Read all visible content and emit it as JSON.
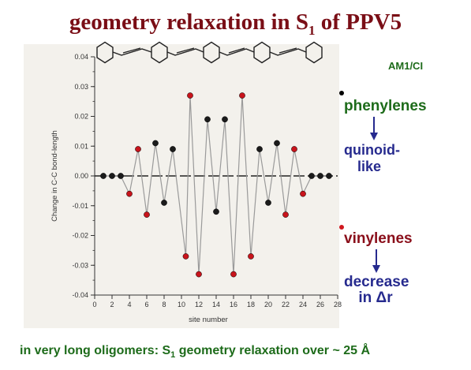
{
  "slide": {
    "title_main": "geometry relaxation in S",
    "title_sub": "1",
    "title_end": " of PPV5",
    "method": "AM1/CI",
    "phenylenes": "phenylenes",
    "quinoid_1": "quinoid-",
    "quinoid_2": "like",
    "vinylenes": "vinylenes",
    "decrease_1": "decrease",
    "decrease_2": "in Δr",
    "footer_a": "in very long oligomers: S",
    "footer_sub": "1",
    "footer_b": " geometry relaxation over ~ 25 Å"
  },
  "colors": {
    "phenylene_point": "#1b1b1b",
    "vinylene_point": "#c8141c",
    "curve": "#9a9a9a",
    "title": "#7a0e16",
    "green_text": "#1d6b1a",
    "blue_text": "#262a8e"
  },
  "chart_data": {
    "type": "line",
    "xlabel": "site number",
    "ylabel": "Change in C-C bond-length",
    "xlim": [
      0,
      28
    ],
    "ylim": [
      -0.04,
      0.04
    ],
    "x_ticks": [
      "0",
      "2",
      "4",
      "6",
      "8",
      "10",
      "12",
      "14",
      "16",
      "18",
      "20",
      "22",
      "24",
      "26",
      "28"
    ],
    "y_ticks": [
      "0.04",
      "0.03",
      "0.02",
      "0.01",
      "0.00",
      "-0.01",
      "-0.02",
      "-0.03",
      "-0.04"
    ],
    "reference_line": 0,
    "points": [
      {
        "x": 1,
        "y": 0.0,
        "kind": "phenylene"
      },
      {
        "x": 2,
        "y": 0.0,
        "kind": "phenylene"
      },
      {
        "x": 3,
        "y": 0.0,
        "kind": "phenylene"
      },
      {
        "x": 4,
        "y": -0.006,
        "kind": "vinylene"
      },
      {
        "x": 5,
        "y": 0.009,
        "kind": "vinylene"
      },
      {
        "x": 6,
        "y": -0.013,
        "kind": "vinylene"
      },
      {
        "x": 7,
        "y": 0.011,
        "kind": "phenylene"
      },
      {
        "x": 8,
        "y": -0.009,
        "kind": "phenylene"
      },
      {
        "x": 9,
        "y": 0.009,
        "kind": "phenylene"
      },
      {
        "x": 10.5,
        "y": -0.027,
        "kind": "vinylene"
      },
      {
        "x": 11,
        "y": 0.027,
        "kind": "vinylene"
      },
      {
        "x": 12,
        "y": -0.033,
        "kind": "vinylene"
      },
      {
        "x": 13,
        "y": 0.019,
        "kind": "phenylene"
      },
      {
        "x": 14,
        "y": -0.012,
        "kind": "phenylene"
      },
      {
        "x": 15,
        "y": 0.019,
        "kind": "phenylene"
      },
      {
        "x": 16,
        "y": -0.033,
        "kind": "vinylene"
      },
      {
        "x": 17,
        "y": 0.027,
        "kind": "vinylene"
      },
      {
        "x": 18,
        "y": -0.027,
        "kind": "vinylene"
      },
      {
        "x": 19,
        "y": 0.009,
        "kind": "phenylene"
      },
      {
        "x": 20,
        "y": -0.009,
        "kind": "phenylene"
      },
      {
        "x": 21,
        "y": 0.011,
        "kind": "phenylene"
      },
      {
        "x": 22,
        "y": -0.013,
        "kind": "vinylene"
      },
      {
        "x": 23,
        "y": 0.009,
        "kind": "vinylene"
      },
      {
        "x": 24,
        "y": -0.006,
        "kind": "vinylene"
      },
      {
        "x": 25,
        "y": 0.0,
        "kind": "phenylene"
      },
      {
        "x": 26,
        "y": 0.0,
        "kind": "phenylene"
      },
      {
        "x": 27,
        "y": 0.0,
        "kind": "phenylene"
      }
    ]
  }
}
